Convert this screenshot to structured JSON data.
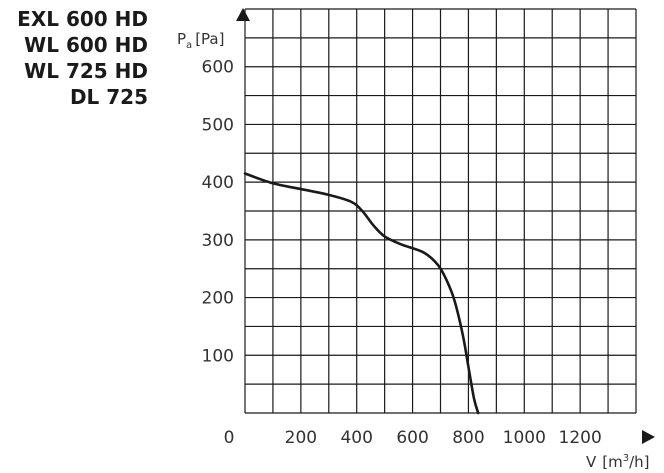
{
  "models": [
    "EXL 600 HD",
    "WL 600 HD",
    "WL 725 HD",
    "DL 725"
  ],
  "chart_data": {
    "type": "line",
    "ylabel": {
      "symbol": "P",
      "subscript": "a",
      "unit": "[Pa]"
    },
    "xlabel": {
      "symbol": "V",
      "unit_prefix": "[m",
      "unit_sup": "3",
      "unit_suffix": "/h]"
    },
    "xlim": [
      0,
      1400
    ],
    "ylim": [
      0,
      700
    ],
    "x_ticks": [
      0,
      200,
      400,
      600,
      800,
      1000,
      1200
    ],
    "y_ticks": [
      100,
      200,
      300,
      400,
      500,
      600
    ],
    "grid": true,
    "series": [
      {
        "color": "#1a1a1a",
        "points": [
          [
            0,
            415
          ],
          [
            100,
            398
          ],
          [
            200,
            388
          ],
          [
            300,
            378
          ],
          [
            380,
            366
          ],
          [
            420,
            350
          ],
          [
            460,
            325
          ],
          [
            500,
            306
          ],
          [
            560,
            292
          ],
          [
            640,
            278
          ],
          [
            690,
            257
          ],
          [
            720,
            232
          ],
          [
            750,
            195
          ],
          [
            780,
            135
          ],
          [
            800,
            80
          ],
          [
            820,
            25
          ],
          [
            835,
            0
          ]
        ]
      }
    ]
  }
}
